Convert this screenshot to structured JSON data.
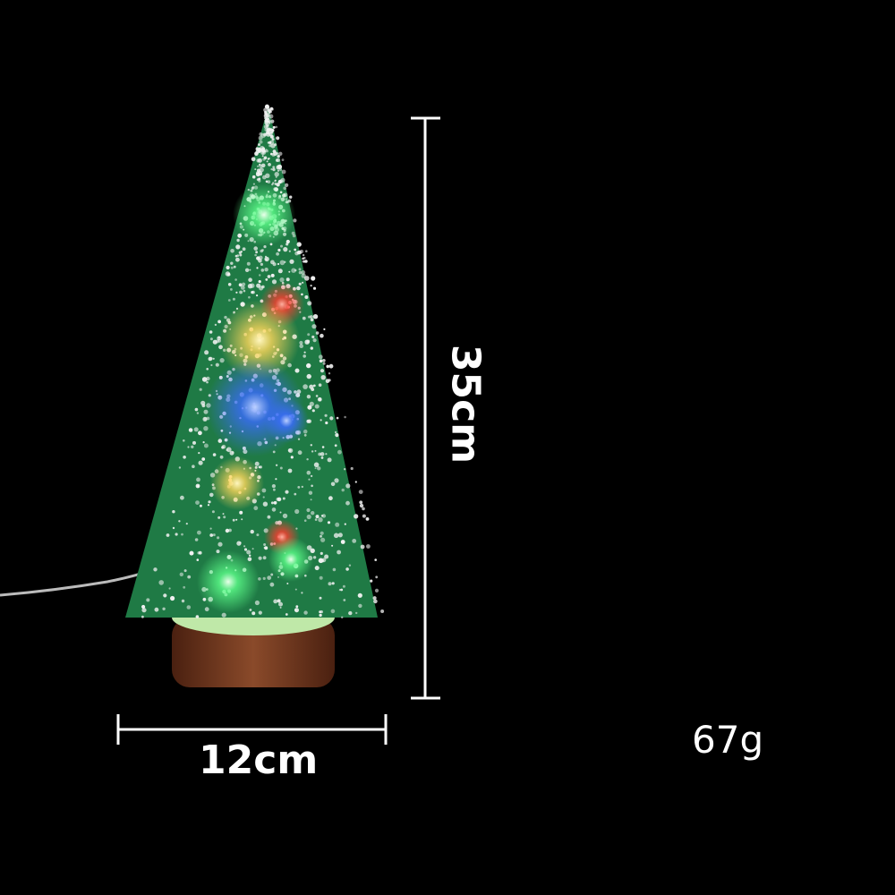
{
  "product": {
    "height_label": "35cm",
    "width_label": "12cm",
    "weight_label": "67g"
  },
  "colors": {
    "background": "#000000",
    "tree_green": "#1f7a45",
    "snow": "#f2f2f2",
    "wood": "#7a3b22",
    "lights": [
      "#ff3b2f",
      "#ffe27a",
      "#3a6bff",
      "#7dff9a"
    ]
  }
}
